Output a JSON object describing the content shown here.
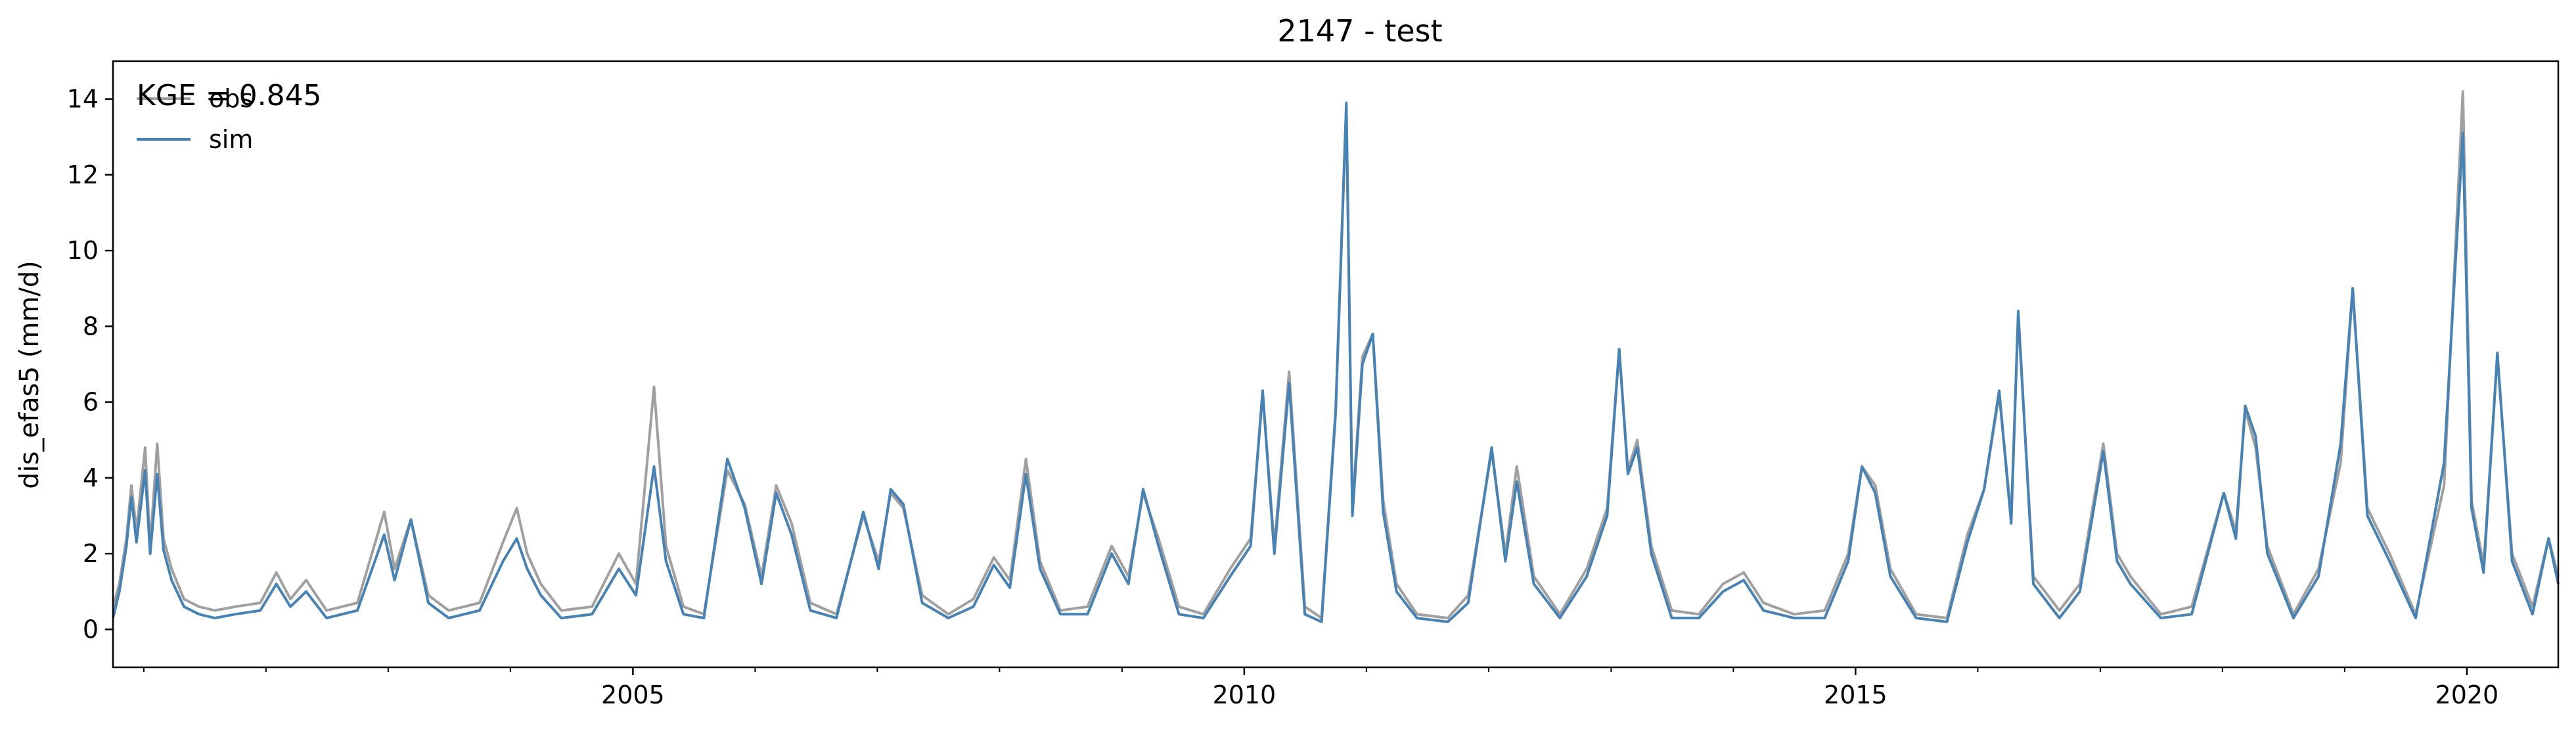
{
  "chart_data": {
    "type": "line",
    "title": "2147 - test",
    "xlabel": "",
    "ylabel": "dis_efas5 (mm/d)",
    "annotation": "KGE = 0.845",
    "xlim": [
      "2000-10-01",
      "2020-09-30"
    ],
    "ylim": [
      -1,
      15
    ],
    "x_ticks": [
      {
        "date": "2005-01-01",
        "label": "2005"
      },
      {
        "date": "2010-01-01",
        "label": "2010"
      },
      {
        "date": "2015-01-01",
        "label": "2015"
      },
      {
        "date": "2020-01-01",
        "label": "2020"
      }
    ],
    "y_ticks": [
      0,
      2,
      4,
      6,
      8,
      10,
      12,
      14
    ],
    "grid": false,
    "legend": {
      "placement": "top-left"
    },
    "series": [
      {
        "name": "obs",
        "color": "#a0a0a0",
        "points": [
          [
            "2000-10-01",
            0.6
          ],
          [
            "2000-10-20",
            1.2
          ],
          [
            "2000-11-10",
            2.4
          ],
          [
            "2000-11-25",
            3.8
          ],
          [
            "2000-12-10",
            2.6
          ],
          [
            "2001-01-05",
            4.8
          ],
          [
            "2001-01-20",
            2.2
          ],
          [
            "2001-02-10",
            4.9
          ],
          [
            "2001-03-01",
            2.4
          ],
          [
            "2001-03-25",
            1.6
          ],
          [
            "2001-05-01",
            0.8
          ],
          [
            "2001-06-15",
            0.6
          ],
          [
            "2001-08-01",
            0.5
          ],
          [
            "2001-10-01",
            0.6
          ],
          [
            "2001-12-15",
            0.7
          ],
          [
            "2002-02-01",
            1.5
          ],
          [
            "2002-03-15",
            0.8
          ],
          [
            "2002-05-01",
            1.3
          ],
          [
            "2002-07-01",
            0.5
          ],
          [
            "2002-10-01",
            0.7
          ],
          [
            "2002-12-20",
            3.1
          ],
          [
            "2003-01-20",
            1.6
          ],
          [
            "2003-03-10",
            2.9
          ],
          [
            "2003-05-01",
            0.9
          ],
          [
            "2003-07-01",
            0.5
          ],
          [
            "2003-10-01",
            0.7
          ],
          [
            "2003-12-10",
            2.3
          ],
          [
            "2004-01-20",
            3.2
          ],
          [
            "2004-02-20",
            2.0
          ],
          [
            "2004-04-01",
            1.2
          ],
          [
            "2004-06-01",
            0.5
          ],
          [
            "2004-09-01",
            0.6
          ],
          [
            "2004-11-20",
            2.0
          ],
          [
            "2005-01-10",
            1.2
          ],
          [
            "2005-03-05",
            6.4
          ],
          [
            "2005-04-10",
            2.2
          ],
          [
            "2005-06-01",
            0.6
          ],
          [
            "2005-08-01",
            0.4
          ],
          [
            "2005-10-10",
            4.2
          ],
          [
            "2005-12-01",
            3.3
          ],
          [
            "2006-01-20",
            1.4
          ],
          [
            "2006-03-05",
            3.8
          ],
          [
            "2006-04-20",
            2.8
          ],
          [
            "2006-06-15",
            0.7
          ],
          [
            "2006-09-01",
            0.4
          ],
          [
            "2006-11-20",
            3.0
          ],
          [
            "2007-01-05",
            1.8
          ],
          [
            "2007-02-10",
            3.6
          ],
          [
            "2007-03-20",
            3.2
          ],
          [
            "2007-05-15",
            0.9
          ],
          [
            "2007-08-01",
            0.4
          ],
          [
            "2007-10-15",
            0.8
          ],
          [
            "2007-12-15",
            1.9
          ],
          [
            "2008-02-01",
            1.3
          ],
          [
            "2008-03-20",
            4.5
          ],
          [
            "2008-05-01",
            1.8
          ],
          [
            "2008-07-01",
            0.5
          ],
          [
            "2008-09-20",
            0.6
          ],
          [
            "2008-12-01",
            2.2
          ],
          [
            "2009-01-20",
            1.4
          ],
          [
            "2009-03-05",
            3.6
          ],
          [
            "2009-04-20",
            2.4
          ],
          [
            "2009-06-20",
            0.6
          ],
          [
            "2009-09-01",
            0.4
          ],
          [
            "2009-11-20",
            1.6
          ],
          [
            "2010-01-20",
            2.4
          ],
          [
            "2010-02-25",
            6.2
          ],
          [
            "2010-04-01",
            2.2
          ],
          [
            "2010-05-15",
            6.8
          ],
          [
            "2010-07-01",
            0.6
          ],
          [
            "2010-08-20",
            0.3
          ],
          [
            "2010-10-01",
            5.8
          ],
          [
            "2010-11-02",
            13.8
          ],
          [
            "2010-11-20",
            3.2
          ],
          [
            "2010-12-20",
            7.2
          ],
          [
            "2011-01-20",
            7.8
          ],
          [
            "2011-02-20",
            3.4
          ],
          [
            "2011-04-01",
            1.2
          ],
          [
            "2011-06-01",
            0.4
          ],
          [
            "2011-09-01",
            0.3
          ],
          [
            "2011-11-01",
            0.9
          ],
          [
            "2012-01-10",
            4.7
          ],
          [
            "2012-02-20",
            2.0
          ],
          [
            "2012-03-25",
            4.3
          ],
          [
            "2012-05-15",
            1.4
          ],
          [
            "2012-08-01",
            0.4
          ],
          [
            "2012-10-20",
            1.6
          ],
          [
            "2012-12-20",
            3.2
          ],
          [
            "2013-01-25",
            7.4
          ],
          [
            "2013-02-20",
            4.2
          ],
          [
            "2013-03-20",
            5.0
          ],
          [
            "2013-05-01",
            2.2
          ],
          [
            "2013-07-01",
            0.5
          ],
          [
            "2013-09-20",
            0.4
          ],
          [
            "2013-12-01",
            1.2
          ],
          [
            "2014-02-01",
            1.5
          ],
          [
            "2014-04-01",
            0.7
          ],
          [
            "2014-07-01",
            0.4
          ],
          [
            "2014-10-01",
            0.5
          ],
          [
            "2014-12-10",
            2.0
          ],
          [
            "2015-01-20",
            4.3
          ],
          [
            "2015-03-01",
            3.8
          ],
          [
            "2015-04-15",
            1.6
          ],
          [
            "2015-07-01",
            0.4
          ],
          [
            "2015-10-01",
            0.3
          ],
          [
            "2015-12-01",
            2.5
          ],
          [
            "2016-01-20",
            3.7
          ],
          [
            "2016-03-05",
            6.2
          ],
          [
            "2016-04-10",
            3.0
          ],
          [
            "2016-05-01",
            8.3
          ],
          [
            "2016-06-15",
            1.4
          ],
          [
            "2016-09-01",
            0.5
          ],
          [
            "2016-11-01",
            1.2
          ],
          [
            "2017-01-10",
            4.9
          ],
          [
            "2017-02-20",
            2.0
          ],
          [
            "2017-04-01",
            1.4
          ],
          [
            "2017-07-01",
            0.4
          ],
          [
            "2017-10-01",
            0.6
          ],
          [
            "2018-01-05",
            3.6
          ],
          [
            "2018-02-10",
            2.6
          ],
          [
            "2018-03-10",
            5.8
          ],
          [
            "2018-04-10",
            4.8
          ],
          [
            "2018-05-15",
            2.2
          ],
          [
            "2018-08-01",
            0.4
          ],
          [
            "2018-10-15",
            1.6
          ],
          [
            "2018-12-20",
            4.4
          ],
          [
            "2019-01-25",
            9.0
          ],
          [
            "2019-03-10",
            3.2
          ],
          [
            "2019-05-15",
            2.0
          ],
          [
            "2019-08-01",
            0.4
          ],
          [
            "2019-10-25",
            3.8
          ],
          [
            "2019-12-20",
            14.2
          ],
          [
            "2020-01-15",
            3.4
          ],
          [
            "2020-02-20",
            1.7
          ],
          [
            "2020-04-01",
            7.2
          ],
          [
            "2020-05-15",
            2.0
          ],
          [
            "2020-07-15",
            0.6
          ],
          [
            "2020-09-01",
            2.4
          ],
          [
            "2020-09-30",
            1.4
          ]
        ]
      },
      {
        "name": "sim",
        "color": "#4682b4",
        "points": [
          [
            "2000-10-01",
            0.3
          ],
          [
            "2000-10-20",
            1.0
          ],
          [
            "2000-11-10",
            2.2
          ],
          [
            "2000-11-25",
            3.5
          ],
          [
            "2000-12-10",
            2.3
          ],
          [
            "2001-01-05",
            4.2
          ],
          [
            "2001-01-20",
            2.0
          ],
          [
            "2001-02-10",
            4.1
          ],
          [
            "2001-03-01",
            2.1
          ],
          [
            "2001-03-25",
            1.3
          ],
          [
            "2001-05-01",
            0.6
          ],
          [
            "2001-06-15",
            0.4
          ],
          [
            "2001-08-01",
            0.3
          ],
          [
            "2001-10-01",
            0.4
          ],
          [
            "2001-12-15",
            0.5
          ],
          [
            "2002-02-01",
            1.2
          ],
          [
            "2002-03-15",
            0.6
          ],
          [
            "2002-05-01",
            1.0
          ],
          [
            "2002-07-01",
            0.3
          ],
          [
            "2002-10-01",
            0.5
          ],
          [
            "2002-12-20",
            2.5
          ],
          [
            "2003-01-20",
            1.3
          ],
          [
            "2003-03-10",
            2.9
          ],
          [
            "2003-05-01",
            0.7
          ],
          [
            "2003-07-01",
            0.3
          ],
          [
            "2003-10-01",
            0.5
          ],
          [
            "2003-12-10",
            1.8
          ],
          [
            "2004-01-20",
            2.4
          ],
          [
            "2004-02-20",
            1.6
          ],
          [
            "2004-04-01",
            0.9
          ],
          [
            "2004-06-01",
            0.3
          ],
          [
            "2004-09-01",
            0.4
          ],
          [
            "2004-11-20",
            1.6
          ],
          [
            "2005-01-10",
            0.9
          ],
          [
            "2005-03-05",
            4.3
          ],
          [
            "2005-04-10",
            1.8
          ],
          [
            "2005-06-01",
            0.4
          ],
          [
            "2005-08-01",
            0.3
          ],
          [
            "2005-10-10",
            4.5
          ],
          [
            "2005-12-01",
            3.2
          ],
          [
            "2006-01-20",
            1.2
          ],
          [
            "2006-03-05",
            3.6
          ],
          [
            "2006-04-20",
            2.5
          ],
          [
            "2006-06-15",
            0.5
          ],
          [
            "2006-09-01",
            0.3
          ],
          [
            "2006-11-20",
            3.1
          ],
          [
            "2007-01-05",
            1.6
          ],
          [
            "2007-02-10",
            3.7
          ],
          [
            "2007-03-20",
            3.3
          ],
          [
            "2007-05-15",
            0.7
          ],
          [
            "2007-08-01",
            0.3
          ],
          [
            "2007-10-15",
            0.6
          ],
          [
            "2007-12-15",
            1.7
          ],
          [
            "2008-02-01",
            1.1
          ],
          [
            "2008-03-20",
            4.1
          ],
          [
            "2008-05-01",
            1.6
          ],
          [
            "2008-07-01",
            0.4
          ],
          [
            "2008-09-20",
            0.4
          ],
          [
            "2008-12-01",
            2.0
          ],
          [
            "2009-01-20",
            1.2
          ],
          [
            "2009-03-05",
            3.7
          ],
          [
            "2009-04-20",
            2.2
          ],
          [
            "2009-06-20",
            0.4
          ],
          [
            "2009-09-01",
            0.3
          ],
          [
            "2009-11-20",
            1.4
          ],
          [
            "2010-01-20",
            2.2
          ],
          [
            "2010-02-25",
            6.3
          ],
          [
            "2010-04-01",
            2.0
          ],
          [
            "2010-05-15",
            6.5
          ],
          [
            "2010-07-01",
            0.4
          ],
          [
            "2010-08-20",
            0.2
          ],
          [
            "2010-10-01",
            5.7
          ],
          [
            "2010-11-02",
            13.9
          ],
          [
            "2010-11-20",
            3.0
          ],
          [
            "2010-12-20",
            7.0
          ],
          [
            "2011-01-20",
            7.8
          ],
          [
            "2011-02-20",
            3.1
          ],
          [
            "2011-04-01",
            1.0
          ],
          [
            "2011-06-01",
            0.3
          ],
          [
            "2011-09-01",
            0.2
          ],
          [
            "2011-11-01",
            0.7
          ],
          [
            "2012-01-10",
            4.8
          ],
          [
            "2012-02-20",
            1.8
          ],
          [
            "2012-03-25",
            3.9
          ],
          [
            "2012-05-15",
            1.2
          ],
          [
            "2012-08-01",
            0.3
          ],
          [
            "2012-10-20",
            1.4
          ],
          [
            "2012-12-20",
            3.0
          ],
          [
            "2013-01-25",
            7.4
          ],
          [
            "2013-02-20",
            4.1
          ],
          [
            "2013-03-20",
            4.8
          ],
          [
            "2013-05-01",
            2.0
          ],
          [
            "2013-07-01",
            0.3
          ],
          [
            "2013-09-20",
            0.3
          ],
          [
            "2013-12-01",
            1.0
          ],
          [
            "2014-02-01",
            1.3
          ],
          [
            "2014-04-01",
            0.5
          ],
          [
            "2014-07-01",
            0.3
          ],
          [
            "2014-10-01",
            0.3
          ],
          [
            "2014-12-10",
            1.8
          ],
          [
            "2015-01-20",
            4.3
          ],
          [
            "2015-03-01",
            3.6
          ],
          [
            "2015-04-15",
            1.4
          ],
          [
            "2015-07-01",
            0.3
          ],
          [
            "2015-10-01",
            0.2
          ],
          [
            "2015-12-01",
            2.3
          ],
          [
            "2016-01-20",
            3.7
          ],
          [
            "2016-03-05",
            6.3
          ],
          [
            "2016-04-10",
            2.8
          ],
          [
            "2016-05-01",
            8.4
          ],
          [
            "2016-06-15",
            1.2
          ],
          [
            "2016-09-01",
            0.3
          ],
          [
            "2016-11-01",
            1.0
          ],
          [
            "2017-01-10",
            4.7
          ],
          [
            "2017-02-20",
            1.8
          ],
          [
            "2017-04-01",
            1.2
          ],
          [
            "2017-07-01",
            0.3
          ],
          [
            "2017-10-01",
            0.4
          ],
          [
            "2018-01-05",
            3.6
          ],
          [
            "2018-02-10",
            2.4
          ],
          [
            "2018-03-10",
            5.9
          ],
          [
            "2018-04-10",
            5.1
          ],
          [
            "2018-05-15",
            2.0
          ],
          [
            "2018-08-01",
            0.3
          ],
          [
            "2018-10-15",
            1.4
          ],
          [
            "2018-12-20",
            4.9
          ],
          [
            "2019-01-25",
            9.0
          ],
          [
            "2019-03-10",
            3.0
          ],
          [
            "2019-05-15",
            1.8
          ],
          [
            "2019-08-01",
            0.3
          ],
          [
            "2019-10-25",
            4.4
          ],
          [
            "2019-12-20",
            13.1
          ],
          [
            "2020-01-15",
            3.2
          ],
          [
            "2020-02-20",
            1.5
          ],
          [
            "2020-04-01",
            7.3
          ],
          [
            "2020-05-15",
            1.8
          ],
          [
            "2020-07-15",
            0.4
          ],
          [
            "2020-09-01",
            2.4
          ],
          [
            "2020-09-30",
            1.2
          ]
        ]
      }
    ]
  }
}
